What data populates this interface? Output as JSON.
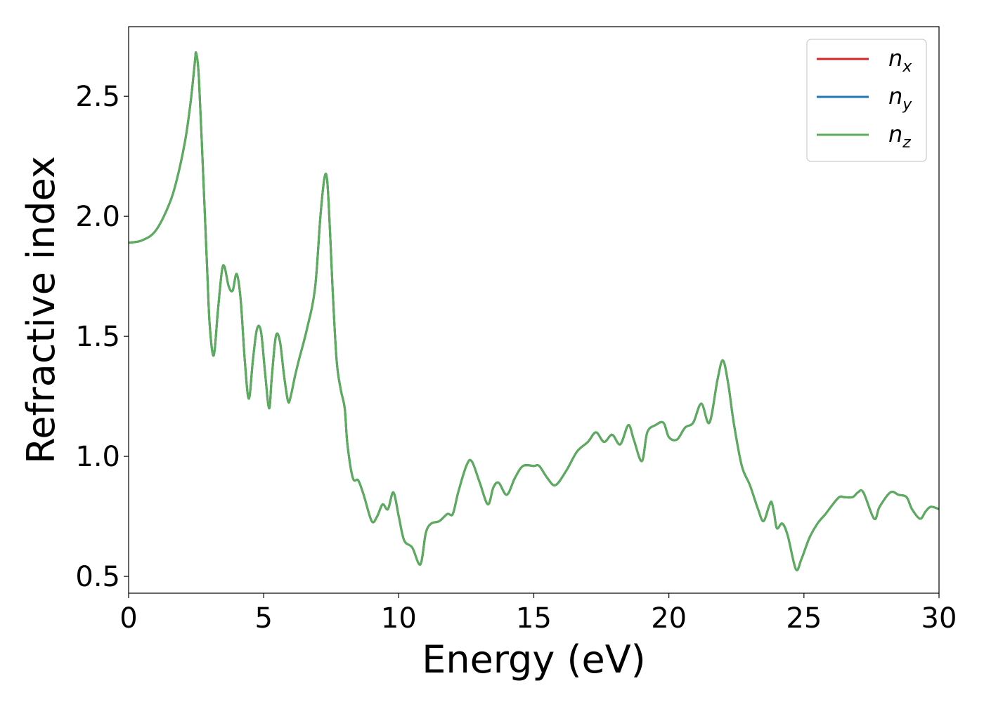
{
  "chart_data": {
    "type": "line",
    "xlabel": "Energy (eV)",
    "ylabel": "Refractive index",
    "xlim": [
      0,
      30
    ],
    "ylim": [
      0.43,
      2.79
    ],
    "xticks": [
      0,
      5,
      10,
      15,
      20,
      25,
      30
    ],
    "xtick_labels": [
      "0",
      "5",
      "10",
      "15",
      "20",
      "25",
      "30"
    ],
    "yticks": [
      0.5,
      1.0,
      1.5,
      2.0,
      2.5
    ],
    "ytick_labels": [
      "0.5",
      "1.0",
      "1.5",
      "2.0",
      "2.5"
    ],
    "grid": false,
    "legend_position": "top-right",
    "x": [
      0,
      0.5,
      1.0,
      1.5,
      1.8,
      2.1,
      2.3,
      2.45,
      2.5,
      2.6,
      2.75,
      2.9,
      3.0,
      3.15,
      3.3,
      3.45,
      3.55,
      3.7,
      3.85,
      4.0,
      4.15,
      4.3,
      4.45,
      4.6,
      4.75,
      4.9,
      5.05,
      5.2,
      5.3,
      5.45,
      5.6,
      5.75,
      5.9,
      6.0,
      6.15,
      6.3,
      6.6,
      6.9,
      7.1,
      7.25,
      7.35,
      7.45,
      7.55,
      7.7,
      7.85,
      8.0,
      8.1,
      8.3,
      8.5,
      8.7,
      9.0,
      9.2,
      9.4,
      9.6,
      9.8,
      10.0,
      10.2,
      10.5,
      10.8,
      11.0,
      11.2,
      11.5,
      11.8,
      12.0,
      12.2,
      12.5,
      12.7,
      13.0,
      13.3,
      13.5,
      13.7,
      14.0,
      14.3,
      14.6,
      15.0,
      15.2,
      15.5,
      15.8,
      16.2,
      16.6,
      17.0,
      17.3,
      17.6,
      17.9,
      18.2,
      18.5,
      18.7,
      19.0,
      19.2,
      19.5,
      19.8,
      20.0,
      20.3,
      20.6,
      20.9,
      21.2,
      21.5,
      21.8,
      22.0,
      22.2,
      22.4,
      22.7,
      23.0,
      23.3,
      23.5,
      23.7,
      23.8,
      23.9,
      24.0,
      24.2,
      24.4,
      24.7,
      24.9,
      25.2,
      25.5,
      25.8,
      26.0,
      26.3,
      26.5,
      26.8,
      27.0,
      27.2,
      27.6,
      27.8,
      28.2,
      28.5,
      28.8,
      29.0,
      29.3,
      29.5,
      29.7,
      30.0
    ],
    "series": [
      {
        "name": "x",
        "color": "#d62728",
        "values": [
          1.89,
          1.9,
          1.94,
          2.05,
          2.16,
          2.32,
          2.48,
          2.64,
          2.68,
          2.58,
          2.2,
          1.8,
          1.55,
          1.42,
          1.6,
          1.77,
          1.79,
          1.71,
          1.69,
          1.76,
          1.65,
          1.4,
          1.24,
          1.4,
          1.53,
          1.52,
          1.35,
          1.2,
          1.33,
          1.5,
          1.48,
          1.34,
          1.23,
          1.25,
          1.33,
          1.4,
          1.53,
          1.7,
          2.0,
          2.16,
          2.15,
          1.95,
          1.7,
          1.4,
          1.28,
          1.2,
          1.05,
          0.91,
          0.9,
          0.84,
          0.73,
          0.75,
          0.8,
          0.78,
          0.85,
          0.75,
          0.65,
          0.62,
          0.55,
          0.68,
          0.72,
          0.73,
          0.76,
          0.76,
          0.85,
          0.96,
          0.98,
          0.89,
          0.8,
          0.87,
          0.89,
          0.84,
          0.91,
          0.96,
          0.96,
          0.96,
          0.91,
          0.88,
          0.94,
          1.02,
          1.06,
          1.1,
          1.06,
          1.09,
          1.05,
          1.13,
          1.07,
          0.98,
          1.1,
          1.13,
          1.14,
          1.08,
          1.07,
          1.12,
          1.14,
          1.22,
          1.14,
          1.32,
          1.4,
          1.3,
          1.14,
          0.96,
          0.88,
          0.78,
          0.73,
          0.79,
          0.81,
          0.76,
          0.7,
          0.72,
          0.67,
          0.53,
          0.57,
          0.66,
          0.72,
          0.76,
          0.79,
          0.83,
          0.83,
          0.83,
          0.85,
          0.85,
          0.74,
          0.79,
          0.85,
          0.84,
          0.83,
          0.78,
          0.74,
          0.77,
          0.79,
          0.78
        ]
      },
      {
        "name": "y",
        "color": "#1f77b4",
        "values": [
          1.89,
          1.9,
          1.94,
          2.05,
          2.16,
          2.32,
          2.48,
          2.64,
          2.68,
          2.58,
          2.2,
          1.8,
          1.55,
          1.42,
          1.6,
          1.77,
          1.79,
          1.71,
          1.69,
          1.76,
          1.65,
          1.4,
          1.24,
          1.4,
          1.53,
          1.52,
          1.35,
          1.2,
          1.33,
          1.5,
          1.48,
          1.34,
          1.23,
          1.25,
          1.33,
          1.4,
          1.53,
          1.7,
          2.0,
          2.16,
          2.15,
          1.95,
          1.7,
          1.4,
          1.28,
          1.2,
          1.05,
          0.91,
          0.9,
          0.84,
          0.73,
          0.75,
          0.8,
          0.78,
          0.85,
          0.75,
          0.65,
          0.62,
          0.55,
          0.68,
          0.72,
          0.73,
          0.76,
          0.76,
          0.85,
          0.96,
          0.98,
          0.89,
          0.8,
          0.87,
          0.89,
          0.84,
          0.91,
          0.96,
          0.96,
          0.96,
          0.91,
          0.88,
          0.94,
          1.02,
          1.06,
          1.1,
          1.06,
          1.09,
          1.05,
          1.13,
          1.07,
          0.98,
          1.1,
          1.13,
          1.14,
          1.08,
          1.07,
          1.12,
          1.14,
          1.22,
          1.14,
          1.32,
          1.4,
          1.3,
          1.14,
          0.96,
          0.88,
          0.78,
          0.73,
          0.79,
          0.81,
          0.76,
          0.7,
          0.72,
          0.67,
          0.53,
          0.57,
          0.66,
          0.72,
          0.76,
          0.79,
          0.83,
          0.83,
          0.83,
          0.85,
          0.85,
          0.74,
          0.79,
          0.85,
          0.84,
          0.83,
          0.78,
          0.74,
          0.77,
          0.79,
          0.78
        ]
      },
      {
        "name": "z",
        "color": "#5aad5a",
        "values": [
          1.89,
          1.9,
          1.94,
          2.05,
          2.16,
          2.32,
          2.48,
          2.64,
          2.68,
          2.58,
          2.2,
          1.8,
          1.55,
          1.42,
          1.6,
          1.77,
          1.79,
          1.71,
          1.69,
          1.76,
          1.65,
          1.4,
          1.24,
          1.4,
          1.53,
          1.52,
          1.35,
          1.2,
          1.33,
          1.5,
          1.48,
          1.34,
          1.23,
          1.25,
          1.33,
          1.4,
          1.53,
          1.7,
          2.0,
          2.16,
          2.15,
          1.95,
          1.7,
          1.4,
          1.28,
          1.2,
          1.05,
          0.91,
          0.9,
          0.84,
          0.73,
          0.75,
          0.8,
          0.78,
          0.85,
          0.75,
          0.65,
          0.62,
          0.55,
          0.68,
          0.72,
          0.73,
          0.76,
          0.76,
          0.85,
          0.96,
          0.98,
          0.89,
          0.8,
          0.87,
          0.89,
          0.84,
          0.91,
          0.96,
          0.96,
          0.96,
          0.91,
          0.88,
          0.94,
          1.02,
          1.06,
          1.1,
          1.06,
          1.09,
          1.05,
          1.13,
          1.07,
          0.98,
          1.1,
          1.13,
          1.14,
          1.08,
          1.07,
          1.12,
          1.14,
          1.22,
          1.14,
          1.32,
          1.4,
          1.3,
          1.14,
          0.96,
          0.88,
          0.78,
          0.73,
          0.79,
          0.81,
          0.76,
          0.7,
          0.72,
          0.67,
          0.53,
          0.57,
          0.66,
          0.72,
          0.76,
          0.79,
          0.83,
          0.83,
          0.83,
          0.85,
          0.85,
          0.74,
          0.79,
          0.85,
          0.84,
          0.83,
          0.78,
          0.74,
          0.77,
          0.79,
          0.78
        ]
      }
    ],
    "legend": [
      {
        "base": "n",
        "sub": "x",
        "color": "#d62728"
      },
      {
        "base": "n",
        "sub": "y",
        "color": "#1f77b4"
      },
      {
        "base": "n",
        "sub": "z",
        "color": "#5aad5a"
      }
    ]
  }
}
